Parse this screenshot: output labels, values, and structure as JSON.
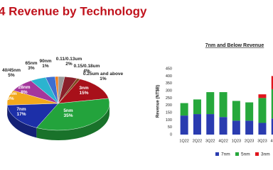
{
  "header": {
    "title": "4 Revenue by Technology"
  },
  "chart_data": [
    {
      "type": "pie",
      "labels": [
        "3nm",
        "5nm",
        "7nm",
        "16nm",
        "28nm",
        "40/45nm",
        "65nm",
        "90nm",
        "0.11/0.13um",
        "0.15/0.18um",
        "0.25um and above"
      ],
      "values": [
        15,
        35,
        17,
        9,
        8,
        5,
        3,
        1,
        2,
        4,
        1
      ],
      "value_labels": [
        "15%",
        "35%",
        "17%",
        "9%",
        "8%",
        "5%",
        "3%",
        "1%",
        "2%",
        "4%",
        "1%"
      ],
      "colors": [
        "#a8101a",
        "#23a33c",
        "#1c2fa8",
        "#f2a81c",
        "#a4379c",
        "#2bb4cf",
        "#3d6fd0",
        "#f07f1a",
        "#9a9a9a",
        "#8a1f2a",
        "#7a4a1e"
      ]
    },
    {
      "type": "bar",
      "stacked": true,
      "title": "7nm and Below Revenue",
      "y_label": "Revenue (NT$B)",
      "categories": [
        "1Q22",
        "2Q22",
        "3Q22",
        "4Q22",
        "1Q23",
        "2Q23",
        "3Q23",
        "4Q23"
      ],
      "series": [
        {
          "name": "7nm",
          "color": "#2a3cb0",
          "values": [
            130,
            140,
            140,
            120,
            95,
            95,
            80,
            110
          ]
        },
        {
          "name": "5nm",
          "color": "#26a83c",
          "values": [
            85,
            100,
            150,
            170,
            135,
            125,
            170,
            200
          ]
        },
        {
          "name": "3nm",
          "color": "#e0141c",
          "values": [
            0,
            0,
            0,
            0,
            0,
            0,
            25,
            90
          ]
        }
      ],
      "ylim": [
        0,
        450
      ],
      "yticks": [
        0,
        50,
        100,
        150,
        200,
        250,
        300,
        350,
        400,
        450
      ],
      "grid": false,
      "legend": "bottom"
    }
  ]
}
